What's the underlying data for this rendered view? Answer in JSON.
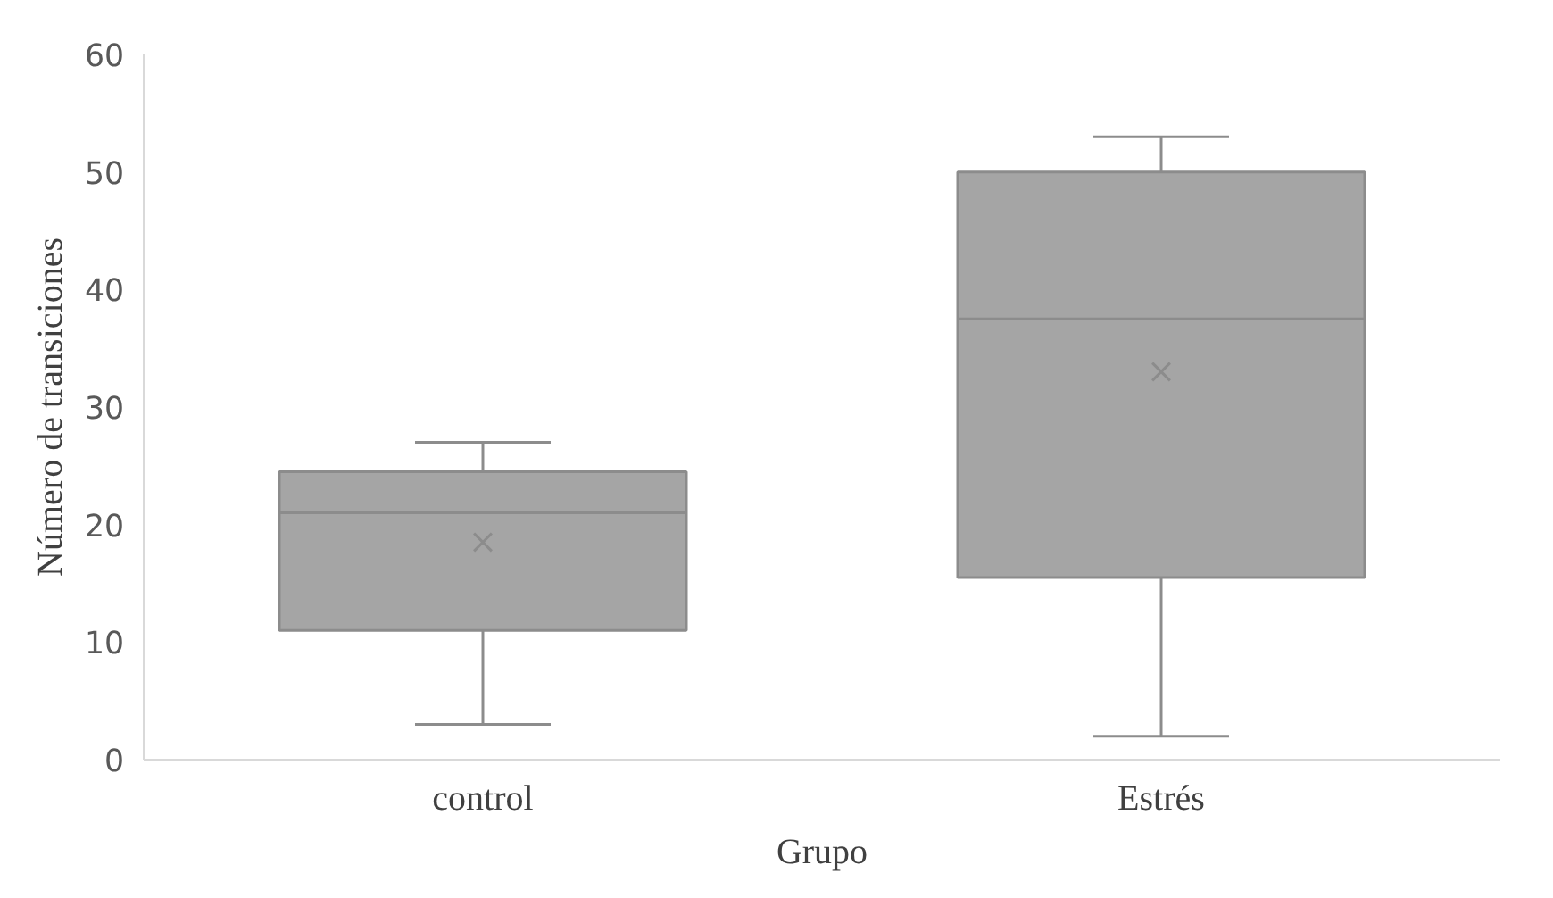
{
  "chart_data": {
    "type": "box",
    "xlabel": "Grupo",
    "ylabel": "Número de transiciones",
    "categories": [
      "control",
      "Estrés"
    ],
    "series": [
      {
        "color": "#a5a5a5",
        "boxes": [
          {
            "low": 3,
            "q1": 11,
            "median": 21,
            "q3": 24.5,
            "high": 27,
            "mean": 18.5
          },
          {
            "low": 2,
            "q1": 15.5,
            "median": 37.5,
            "q3": 50,
            "high": 53,
            "mean": 33
          }
        ]
      }
    ],
    "ylim": [
      0,
      60
    ],
    "yticks": [
      0,
      10,
      20,
      30,
      40,
      50,
      60
    ],
    "grid": false
  }
}
